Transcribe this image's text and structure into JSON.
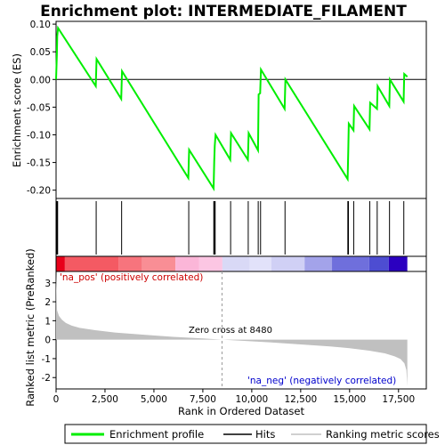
{
  "chart_data": {
    "title": "Enrichment plot: INTERMEDIATE_FILAMENT",
    "type": "line",
    "xlabel": "Rank in Ordered Dataset",
    "x_ticks": [
      0,
      2500,
      5000,
      7500,
      10000,
      12500,
      15000,
      17500
    ],
    "x_tick_labels": [
      "0",
      "2,500",
      "5,000",
      "7,500",
      "10,000",
      "12,500",
      "15,000",
      "17,500"
    ],
    "xlim": [
      0,
      18920
    ],
    "es_panel": {
      "ylabel": "Enrichment score (ES)",
      "ylim": [
        -0.215,
        0.105
      ],
      "y_ticks": [
        0.1,
        0.05,
        0.0,
        -0.05,
        -0.1,
        -0.15,
        -0.2
      ],
      "y_tick_labels": [
        "0.10",
        "0.05",
        "0.00",
        "-0.05",
        "-0.10",
        "-0.15",
        "-0.20"
      ],
      "series": [
        {
          "name": "Enrichment profile",
          "color": "#00ee00",
          "x": [
            0,
            40,
            60,
            100,
            2030,
            2070,
            3330,
            3370,
            6760,
            6800,
            8050,
            8080,
            8110,
            8150,
            8900,
            8940,
            9800,
            9840,
            10320,
            10350,
            10430,
            10470,
            11680,
            11720,
            14900,
            14930,
            14960,
            15200,
            15230,
            16020,
            16050,
            16400,
            16430,
            17030,
            17060,
            17760,
            17790,
            17950
          ],
          "y": [
            0.0,
            0.045,
            0.078,
            0.093,
            -0.012,
            0.037,
            -0.035,
            0.015,
            -0.178,
            -0.127,
            -0.197,
            -0.148,
            -0.12,
            -0.1,
            -0.145,
            -0.097,
            -0.145,
            -0.097,
            -0.128,
            -0.027,
            -0.025,
            0.018,
            -0.053,
            0.0,
            -0.18,
            -0.13,
            -0.08,
            -0.092,
            -0.048,
            -0.09,
            -0.042,
            -0.053,
            -0.012,
            -0.048,
            0.0,
            -0.04,
            0.01,
            0.005
          ]
        }
      ]
    },
    "hits": [
      20,
      40,
      60,
      80,
      2050,
      3350,
      6780,
      8060,
      8090,
      8130,
      8920,
      9820,
      10330,
      10450,
      11700,
      14910,
      14940,
      15210,
      16030,
      16410,
      17040,
      17770
    ],
    "heatmap": {
      "segments": [
        {
          "from": 0,
          "to": 450,
          "color": "#e8001a"
        },
        {
          "from": 450,
          "to": 3200,
          "color": "#f45a63"
        },
        {
          "from": 3200,
          "to": 4400,
          "color": "#f7747d"
        },
        {
          "from": 4400,
          "to": 6100,
          "color": "#f98e95"
        },
        {
          "from": 6100,
          "to": 7300,
          "color": "#fbb6d8"
        },
        {
          "from": 7300,
          "to": 8500,
          "color": "#fcc6e3"
        },
        {
          "from": 8500,
          "to": 9900,
          "color": "#d9d9f6"
        },
        {
          "from": 9900,
          "to": 11000,
          "color": "#e2e2fa"
        },
        {
          "from": 11000,
          "to": 12700,
          "color": "#d0d0f5"
        },
        {
          "from": 12700,
          "to": 14100,
          "color": "#a3a3ea"
        },
        {
          "from": 14100,
          "to": 16000,
          "color": "#6f6fdc"
        },
        {
          "from": 16000,
          "to": 17000,
          "color": "#4d4dd2"
        },
        {
          "from": 17000,
          "to": 17950,
          "color": "#2b00c0"
        }
      ]
    },
    "metric_panel": {
      "ylabel": "Ranked list metric (PreRanked)",
      "ylim": [
        -2.6,
        3.6
      ],
      "y_ticks": [
        3,
        2,
        1,
        0,
        -1,
        -2
      ],
      "y_tick_labels": [
        "3",
        "2",
        "1",
        "0",
        "-1",
        "-2"
      ],
      "color": "#c0c0c0",
      "curve": {
        "x": [
          0,
          50,
          150,
          300,
          500,
          800,
          1200,
          2000,
          3000,
          4500,
          6000,
          7500,
          8480,
          9500,
          11000,
          12500,
          14000,
          15000,
          16000,
          16800,
          17300,
          17600,
          17800,
          17900,
          17950
        ],
        "y": [
          3.5,
          1.55,
          1.25,
          1.05,
          0.88,
          0.74,
          0.62,
          0.5,
          0.38,
          0.26,
          0.15,
          0.07,
          0.0,
          -0.06,
          -0.15,
          -0.25,
          -0.36,
          -0.45,
          -0.58,
          -0.72,
          -0.88,
          -1.02,
          -1.25,
          -1.6,
          -2.45
        ]
      },
      "zero_cross": 8480,
      "label_pos": "'na_pos' (positively correlated)",
      "label_neg": "'na_neg' (negatively correlated)",
      "label_zero": "Zero cross at 8480"
    },
    "legend": [
      {
        "name": "Enrichment profile",
        "color": "#00ee00"
      },
      {
        "name": "Hits",
        "color": "#000000"
      },
      {
        "name": "Ranking metric scores",
        "color": "#c0c0c0"
      }
    ]
  }
}
